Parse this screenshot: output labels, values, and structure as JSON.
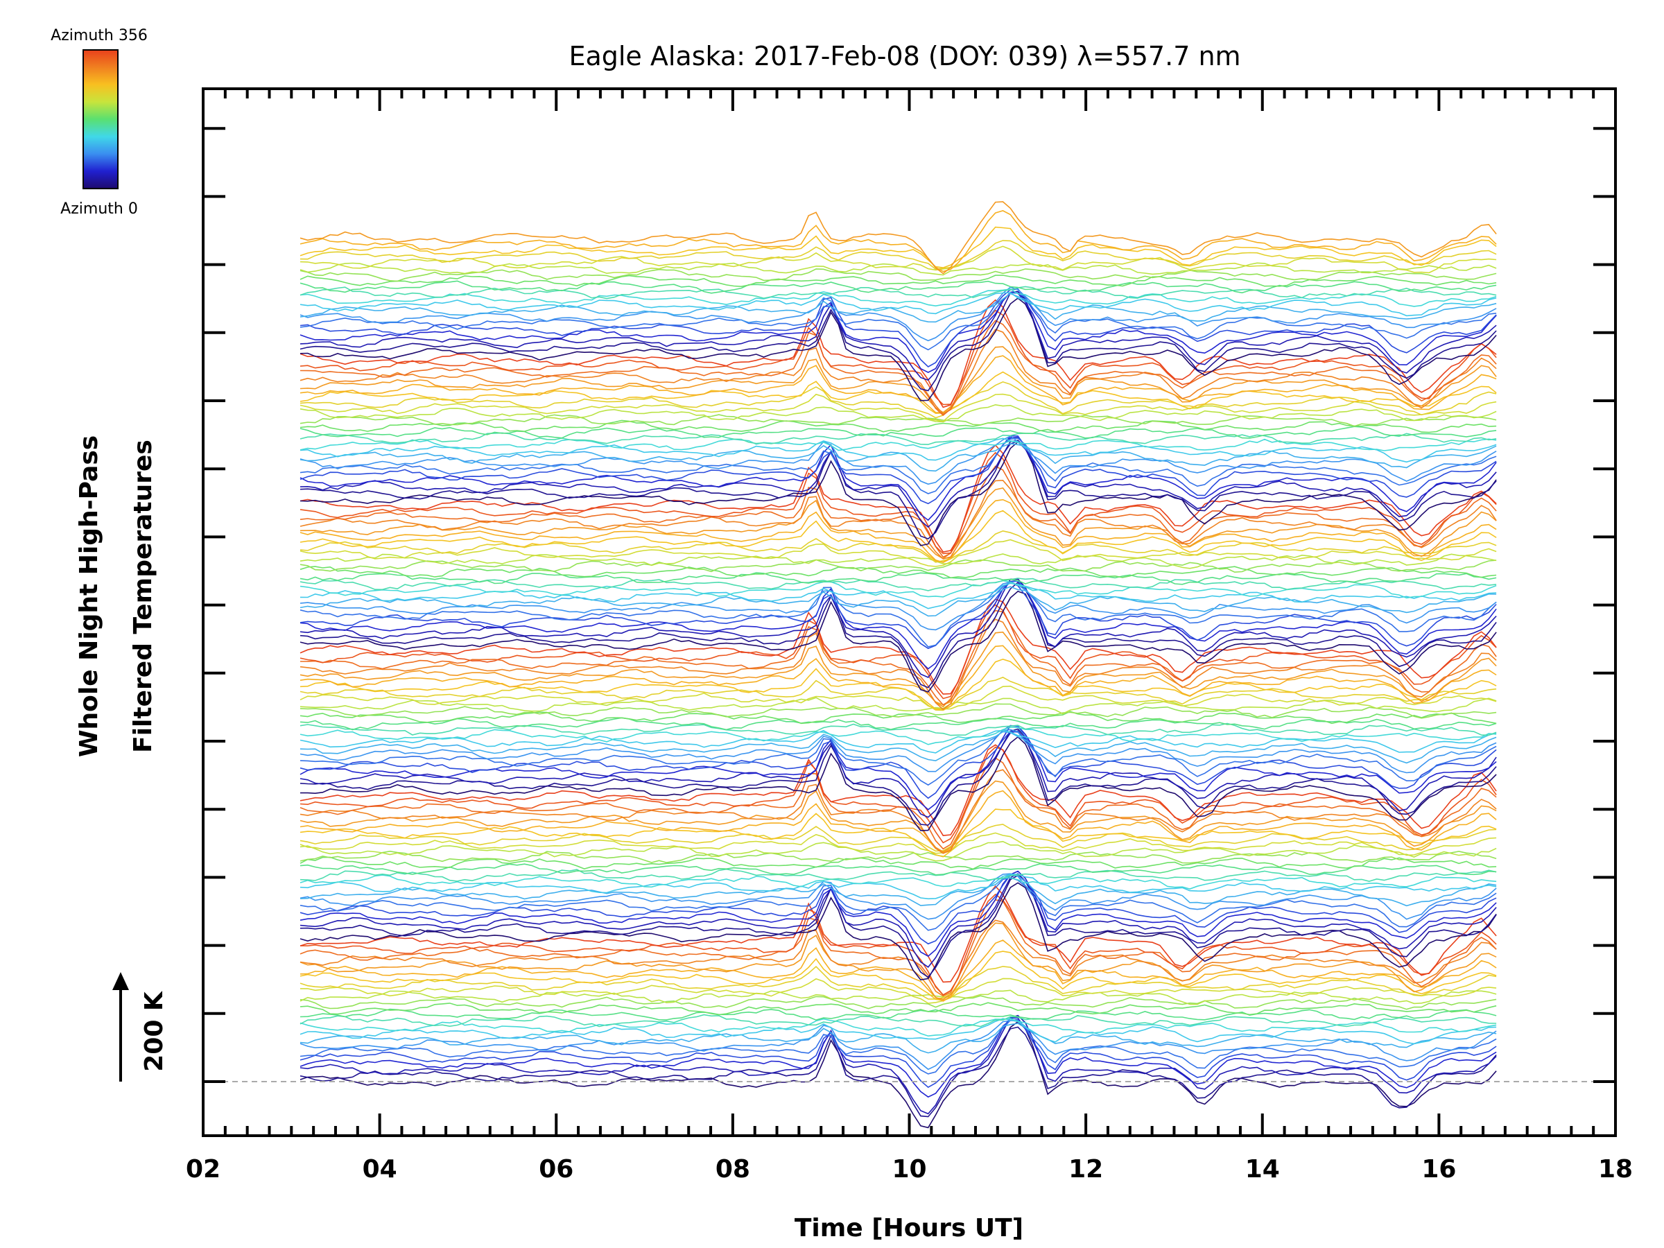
{
  "chart_data": {
    "type": "line",
    "title": "Eagle Alaska: 2017-Feb-08 (DOY: 039) λ=557.7 nm",
    "xlabel": "Time [Hours UT]",
    "ylabel_line1": "Whole Night High-Pass",
    "ylabel_line2": "Filtered Temperatures",
    "xlim": [
      2,
      18
    ],
    "x_ticks": [
      2,
      4,
      6,
      8,
      10,
      12,
      14,
      16,
      18
    ],
    "x_tick_labels": [
      "02",
      "04",
      "06",
      "08",
      "10",
      "12",
      "14",
      "16",
      "18"
    ],
    "x_start": 3.1,
    "x_end": 16.65,
    "scale_bar_label": "200 K",
    "scale_bar_K": 200,
    "num_series": 140,
    "azimuth_period": 24,
    "colorbar_top_label": "Azimuth 356",
    "colorbar_bottom_label": "Azimuth 0",
    "colorbar_stops": [
      "#1e0a6e",
      "#2020d0",
      "#3a8ef0",
      "#40d8e8",
      "#5ae070",
      "#c8e43c",
      "#f8c020",
      "#f08020",
      "#e8401c"
    ],
    "wave_events": [
      {
        "center_hours": 9.0,
        "width_hours": 0.12,
        "amplitude_K": 80
      },
      {
        "center_hours": 10.3,
        "width_hours": 0.22,
        "amplitude_K": -90
      },
      {
        "center_hours": 11.1,
        "width_hours": 0.25,
        "amplitude_K": 110
      },
      {
        "center_hours": 11.7,
        "width_hours": 0.1,
        "amplitude_K": -40
      },
      {
        "center_hours": 13.2,
        "width_hours": 0.2,
        "amplitude_K": -45
      },
      {
        "center_hours": 15.7,
        "width_hours": 0.25,
        "amplitude_K": -60
      },
      {
        "center_hours": 16.6,
        "width_hours": 0.15,
        "amplitude_K": 40
      }
    ],
    "grid": false
  }
}
